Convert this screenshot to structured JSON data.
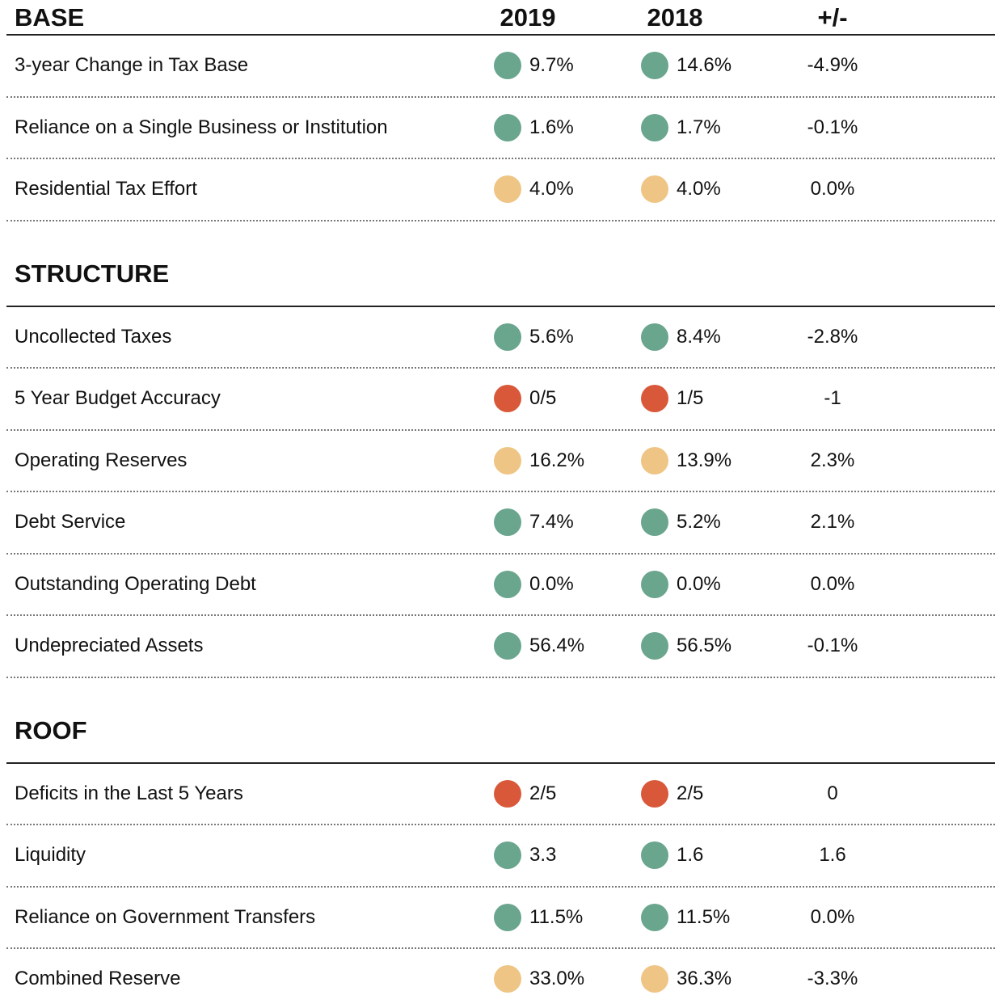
{
  "columns": [
    "2019",
    "2018",
    "+/-"
  ],
  "sections": [
    {
      "title": "BASE",
      "rows": [
        {
          "label": "3-year Change in Tax Base",
          "v2019": "9.7%",
          "c2019": "#6aa58e",
          "v2018": "14.6%",
          "c2018": "#6aa58e",
          "diff": "-4.9%"
        },
        {
          "label": "Reliance on a Single Business or Institution",
          "v2019": "1.6%",
          "c2019": "#6aa58e",
          "v2018": "1.7%",
          "c2018": "#6aa58e",
          "diff": "-0.1%"
        },
        {
          "label": "Residential Tax Effort",
          "v2019": "4.0%",
          "c2019": "#efc585",
          "v2018": "4.0%",
          "c2018": "#efc585",
          "diff": "0.0%"
        }
      ]
    },
    {
      "title": "STRUCTURE",
      "rows": [
        {
          "label": "Uncollected Taxes",
          "v2019": "5.6%",
          "c2019": "#6aa58e",
          "v2018": "8.4%",
          "c2018": "#6aa58e",
          "diff": "-2.8%"
        },
        {
          "label": "5 Year Budget Accuracy",
          "v2019": "0/5",
          "c2019": "#d9583a",
          "v2018": "1/5",
          "c2018": "#d9583a",
          "diff": "-1"
        },
        {
          "label": "Operating Reserves",
          "v2019": "16.2%",
          "c2019": "#efc585",
          "v2018": "13.9%",
          "c2018": "#efc585",
          "diff": "2.3%"
        },
        {
          "label": "Debt Service",
          "v2019": "7.4%",
          "c2019": "#6aa58e",
          "v2018": "5.2%",
          "c2018": "#6aa58e",
          "diff": "2.1%"
        },
        {
          "label": "Outstanding Operating Debt",
          "v2019": "0.0%",
          "c2019": "#6aa58e",
          "v2018": "0.0%",
          "c2018": "#6aa58e",
          "diff": "0.0%"
        },
        {
          "label": "Undepreciated Assets",
          "v2019": "56.4%",
          "c2019": "#6aa58e",
          "v2018": "56.5%",
          "c2018": "#6aa58e",
          "diff": "-0.1%"
        }
      ]
    },
    {
      "title": "ROOF",
      "rows": [
        {
          "label": "Deficits in the Last 5 Years",
          "v2019": "2/5",
          "c2019": "#d9583a",
          "v2018": "2/5",
          "c2018": "#d9583a",
          "diff": "0"
        },
        {
          "label": "Liquidity",
          "v2019": "3.3",
          "c2019": "#6aa58e",
          "v2018": "1.6",
          "c2018": "#6aa58e",
          "diff": "1.6"
        },
        {
          "label": "Reliance on Government Transfers",
          "v2019": "11.5%",
          "c2019": "#6aa58e",
          "v2018": "11.5%",
          "c2018": "#6aa58e",
          "diff": "0.0%"
        },
        {
          "label": "Combined Reserve",
          "v2019": "33.0%",
          "c2019": "#efc585",
          "v2018": "36.3%",
          "c2018": "#efc585",
          "diff": "-3.3%"
        }
      ]
    }
  ]
}
